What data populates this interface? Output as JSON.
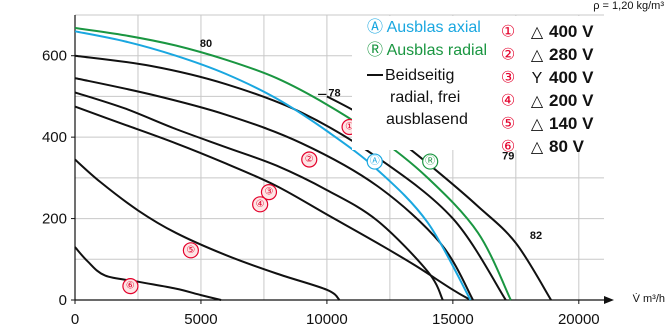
{
  "chart_data": {
    "type": "line",
    "title": "",
    "xlabel": "V̇ m³/h",
    "ylabel": "",
    "density_note": "ρ = 1,20 kg/m³",
    "xlim": [
      0,
      21000
    ],
    "ylim": [
      0,
      700
    ],
    "x_ticks": [
      "0",
      "5000",
      "10000",
      "15000",
      "20000"
    ],
    "y_ticks": [
      "0",
      "200",
      "400",
      "600"
    ],
    "grid": true,
    "colors": {
      "black": "#111111",
      "blue": "#1aa7e0",
      "green": "#1a9641",
      "red": "#e4002b",
      "red_bg": "#fde5e5"
    },
    "series": [
      {
        "name": "① △ 400 V",
        "color": "black",
        "points": [
          [
            0,
            600
          ],
          [
            3000,
            575
          ],
          [
            6000,
            530
          ],
          [
            9000,
            460
          ],
          [
            12000,
            350
          ],
          [
            15000,
            200
          ],
          [
            17100,
            0
          ]
        ]
      },
      {
        "name": "② △ 280 V",
        "color": "black",
        "points": [
          [
            0,
            545
          ],
          [
            3000,
            505
          ],
          [
            6000,
            455
          ],
          [
            9000,
            385
          ],
          [
            12000,
            280
          ],
          [
            14500,
            140
          ],
          [
            15800,
            0
          ]
        ]
      },
      {
        "name": "③ Y 400 V",
        "color": "black",
        "points": [
          [
            0,
            510
          ],
          [
            2000,
            470
          ],
          [
            4000,
            420
          ],
          [
            6000,
            375
          ],
          [
            8000,
            330
          ],
          [
            10000,
            270
          ],
          [
            12000,
            195
          ],
          [
            14000,
            70
          ],
          [
            14600,
            0
          ]
        ]
      },
      {
        "name": "④ △ 200 V",
        "color": "black",
        "points": [
          [
            0,
            475
          ],
          [
            2000,
            430
          ],
          [
            4000,
            385
          ],
          [
            6000,
            335
          ],
          [
            8000,
            280
          ],
          [
            10000,
            210
          ],
          [
            12000,
            140
          ],
          [
            13500,
            85
          ],
          [
            15000,
            25
          ],
          [
            15700,
            0
          ]
        ]
      },
      {
        "name": "⑤ △ 140 V",
        "color": "black",
        "points": [
          [
            0,
            345
          ],
          [
            1000,
            290
          ],
          [
            2500,
            220
          ],
          [
            4000,
            165
          ],
          [
            6000,
            110
          ],
          [
            8000,
            65
          ],
          [
            10000,
            25
          ],
          [
            10500,
            0
          ]
        ]
      },
      {
        "name": "⑥ △ 80 V",
        "color": "black",
        "points": [
          [
            0,
            130
          ],
          [
            500,
            95
          ],
          [
            1200,
            60
          ],
          [
            2500,
            45
          ],
          [
            4000,
            28
          ],
          [
            5000,
            12
          ],
          [
            5800,
            0
          ]
        ]
      },
      {
        "name": "Ⓐ Ausblas axial",
        "color": "blue",
        "points": [
          [
            0,
            660
          ],
          [
            2000,
            635
          ],
          [
            4000,
            600
          ],
          [
            6000,
            555
          ],
          [
            8000,
            495
          ],
          [
            10000,
            415
          ],
          [
            12000,
            320
          ],
          [
            14000,
            190
          ],
          [
            15700,
            0
          ]
        ]
      },
      {
        "name": "Ⓡ Ausblas radial",
        "color": "green",
        "points": [
          [
            0,
            668
          ],
          [
            2000,
            650
          ],
          [
            4000,
            625
          ],
          [
            6000,
            590
          ],
          [
            8000,
            545
          ],
          [
            10000,
            480
          ],
          [
            12000,
            400
          ],
          [
            14000,
            300
          ],
          [
            16000,
            165
          ],
          [
            17300,
            0
          ]
        ]
      },
      {
        "name": "Beidseitig radial, frei ausblasend",
        "color": "black",
        "points": [
          [
            10000,
            500
          ],
          [
            11500,
            450
          ],
          [
            13000,
            385
          ],
          [
            14500,
            310
          ],
          [
            16000,
            230
          ],
          [
            17500,
            140
          ],
          [
            18900,
            0
          ]
        ]
      }
    ],
    "curve_labels": [
      "①",
      "②",
      "③",
      "④",
      "⑤",
      "⑥",
      "Ⓐ",
      "Ⓡ"
    ],
    "annotations": [
      "80",
      "78",
      "79",
      "82"
    ],
    "legend": {
      "left": [
        {
          "text": "Ⓐ Ausblas axial",
          "color": "blue"
        },
        {
          "text": "Ⓡ Ausblas radial",
          "color": "green"
        },
        {
          "text": "Beidseitig",
          "color": "black"
        },
        {
          "text": "radial, frei",
          "color": "black"
        },
        {
          "text": "ausblasend",
          "color": "black"
        }
      ],
      "right": [
        {
          "num": "①",
          "sym": "△",
          "volt": "400 V"
        },
        {
          "num": "②",
          "sym": "△",
          "volt": "280 V"
        },
        {
          "num": "③",
          "sym": "Y",
          "volt": "400 V"
        },
        {
          "num": "④",
          "sym": "△",
          "volt": "200 V"
        },
        {
          "num": "⑤",
          "sym": "△",
          "volt": "140 V"
        },
        {
          "num": "⑥",
          "sym": "△",
          "volt": " 80 V"
        }
      ],
      "placement": "top-right"
    }
  }
}
